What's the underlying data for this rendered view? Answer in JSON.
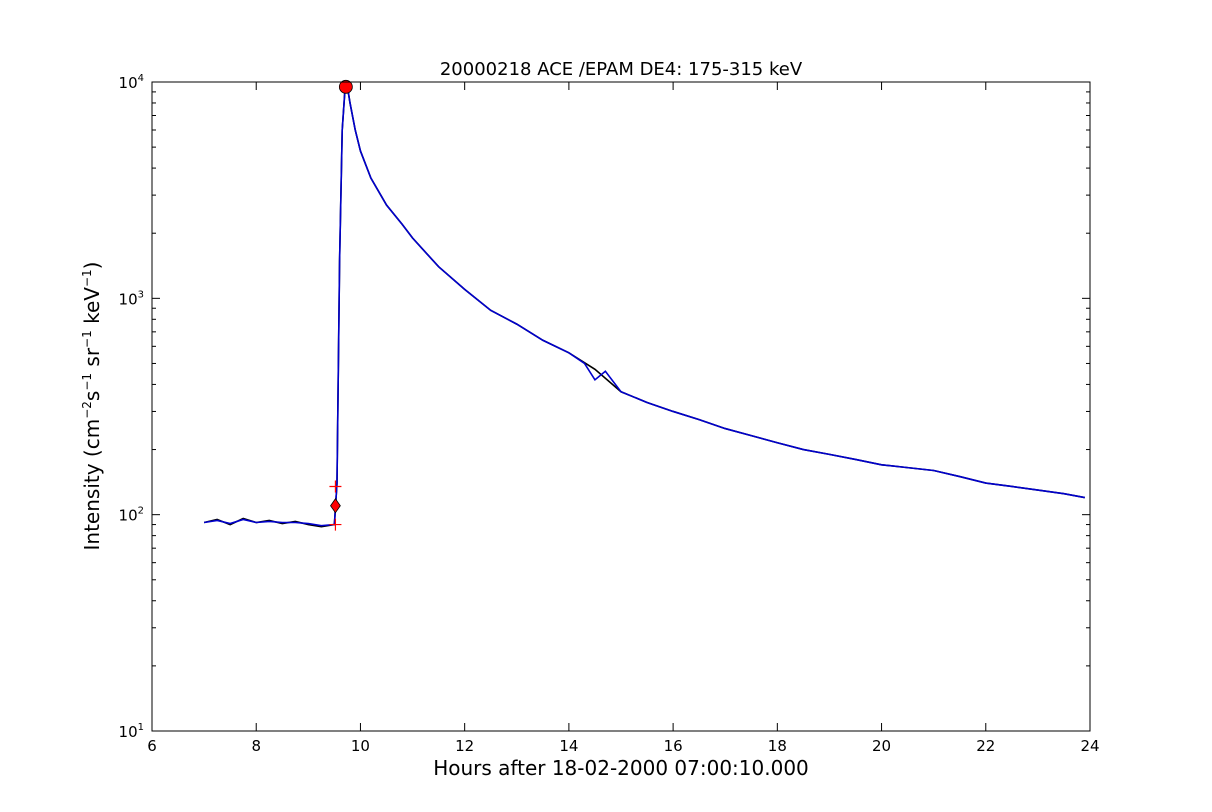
{
  "chart_data": {
    "type": "line",
    "title": "20000218 ACE /EPAM DE4: 175-315 keV",
    "xlabel": "Hours after 18-02-2000 07:00:10.000",
    "ylabel_parts": {
      "lead": "Intensity (cm",
      "exp1": "−2",
      "s": "s",
      "exp2": "−1",
      "sr": " sr",
      "exp3": "−1",
      "kev": " keV",
      "exp4": "−1",
      "tail": ")"
    },
    "xlim": [
      6,
      24
    ],
    "ylim": [
      10,
      10000
    ],
    "yscale": "log",
    "grid": false,
    "x_ticks": [
      {
        "value": 6,
        "label": "6"
      },
      {
        "value": 8,
        "label": "8"
      },
      {
        "value": 10,
        "label": "10"
      },
      {
        "value": 12,
        "label": "12"
      },
      {
        "value": 14,
        "label": "14"
      },
      {
        "value": 16,
        "label": "16"
      },
      {
        "value": 18,
        "label": "18"
      },
      {
        "value": 20,
        "label": "20"
      },
      {
        "value": 22,
        "label": "22"
      },
      {
        "value": 24,
        "label": "24"
      }
    ],
    "y_ticks": [
      {
        "value": 10,
        "base": "10",
        "exp": "1"
      },
      {
        "value": 100,
        "base": "10",
        "exp": "2"
      },
      {
        "value": 1000,
        "base": "10",
        "exp": "3"
      },
      {
        "value": 10000,
        "base": "10",
        "exp": "4"
      }
    ],
    "series": [
      {
        "color": "#000000",
        "x": [
          7.0,
          7.25,
          7.5,
          7.75,
          8.0,
          8.25,
          8.5,
          8.75,
          9.0,
          9.25,
          9.5,
          9.55,
          9.6,
          9.65,
          9.7,
          9.75,
          9.8,
          9.9,
          10.0,
          10.2,
          10.5,
          10.8,
          11.0,
          11.5,
          12.0,
          12.5,
          13.0,
          13.5,
          14.0,
          14.5,
          15.0,
          15.5,
          16.0,
          16.5,
          17.0,
          17.5,
          18.0,
          18.5,
          19.0,
          19.5,
          20.0,
          20.5,
          21.0,
          21.5,
          22.0,
          22.5,
          23.0,
          23.5,
          23.9
        ],
        "y": [
          92,
          95,
          90,
          96,
          92,
          94,
          91,
          93,
          90,
          88,
          90,
          140,
          1500,
          6000,
          9000,
          9500,
          8000,
          6000,
          4800,
          3600,
          2700,
          2200,
          1900,
          1400,
          1100,
          880,
          760,
          640,
          560,
          470,
          370,
          330,
          300,
          275,
          250,
          232,
          215,
          200,
          190,
          180,
          170,
          165,
          160,
          150,
          140,
          135,
          130,
          125,
          120
        ]
      },
      {
        "color": "#0000cc",
        "x": [
          7.0,
          7.25,
          7.5,
          7.75,
          8.0,
          8.25,
          8.5,
          8.75,
          9.0,
          9.25,
          9.5,
          9.55,
          9.6,
          9.65,
          9.7,
          9.75,
          9.8,
          9.9,
          10.0,
          10.2,
          10.5,
          10.8,
          11.0,
          11.5,
          12.0,
          12.5,
          13.0,
          13.5,
          14.0,
          14.3,
          14.5,
          14.7,
          15.0,
          15.5,
          16.0,
          16.5,
          17.0,
          17.5,
          18.0,
          18.5,
          19.0,
          19.5,
          20.0,
          20.5,
          21.0,
          21.5,
          22.0,
          22.5,
          23.0,
          23.5,
          23.9
        ],
        "y": [
          92,
          94,
          91,
          95,
          92,
          93,
          92,
          92,
          91,
          89,
          90,
          140,
          1500,
          6000,
          9000,
          9500,
          8000,
          6000,
          4800,
          3600,
          2700,
          2200,
          1900,
          1400,
          1100,
          880,
          760,
          640,
          560,
          500,
          420,
          460,
          370,
          330,
          300,
          275,
          250,
          232,
          215,
          200,
          190,
          180,
          170,
          165,
          160,
          150,
          140,
          135,
          130,
          125,
          120
        ]
      }
    ],
    "markers": [
      {
        "shape": "circle",
        "x": 9.72,
        "y": 9500,
        "color": "#ff0000"
      },
      {
        "shape": "diamond",
        "x": 9.52,
        "y": 110,
        "color": "#ff0000"
      },
      {
        "shape": "plus",
        "x": 9.52,
        "y": 135,
        "color": "#ff0000"
      },
      {
        "shape": "plus",
        "x": 9.52,
        "y": 90,
        "color": "#ff0000"
      }
    ]
  }
}
